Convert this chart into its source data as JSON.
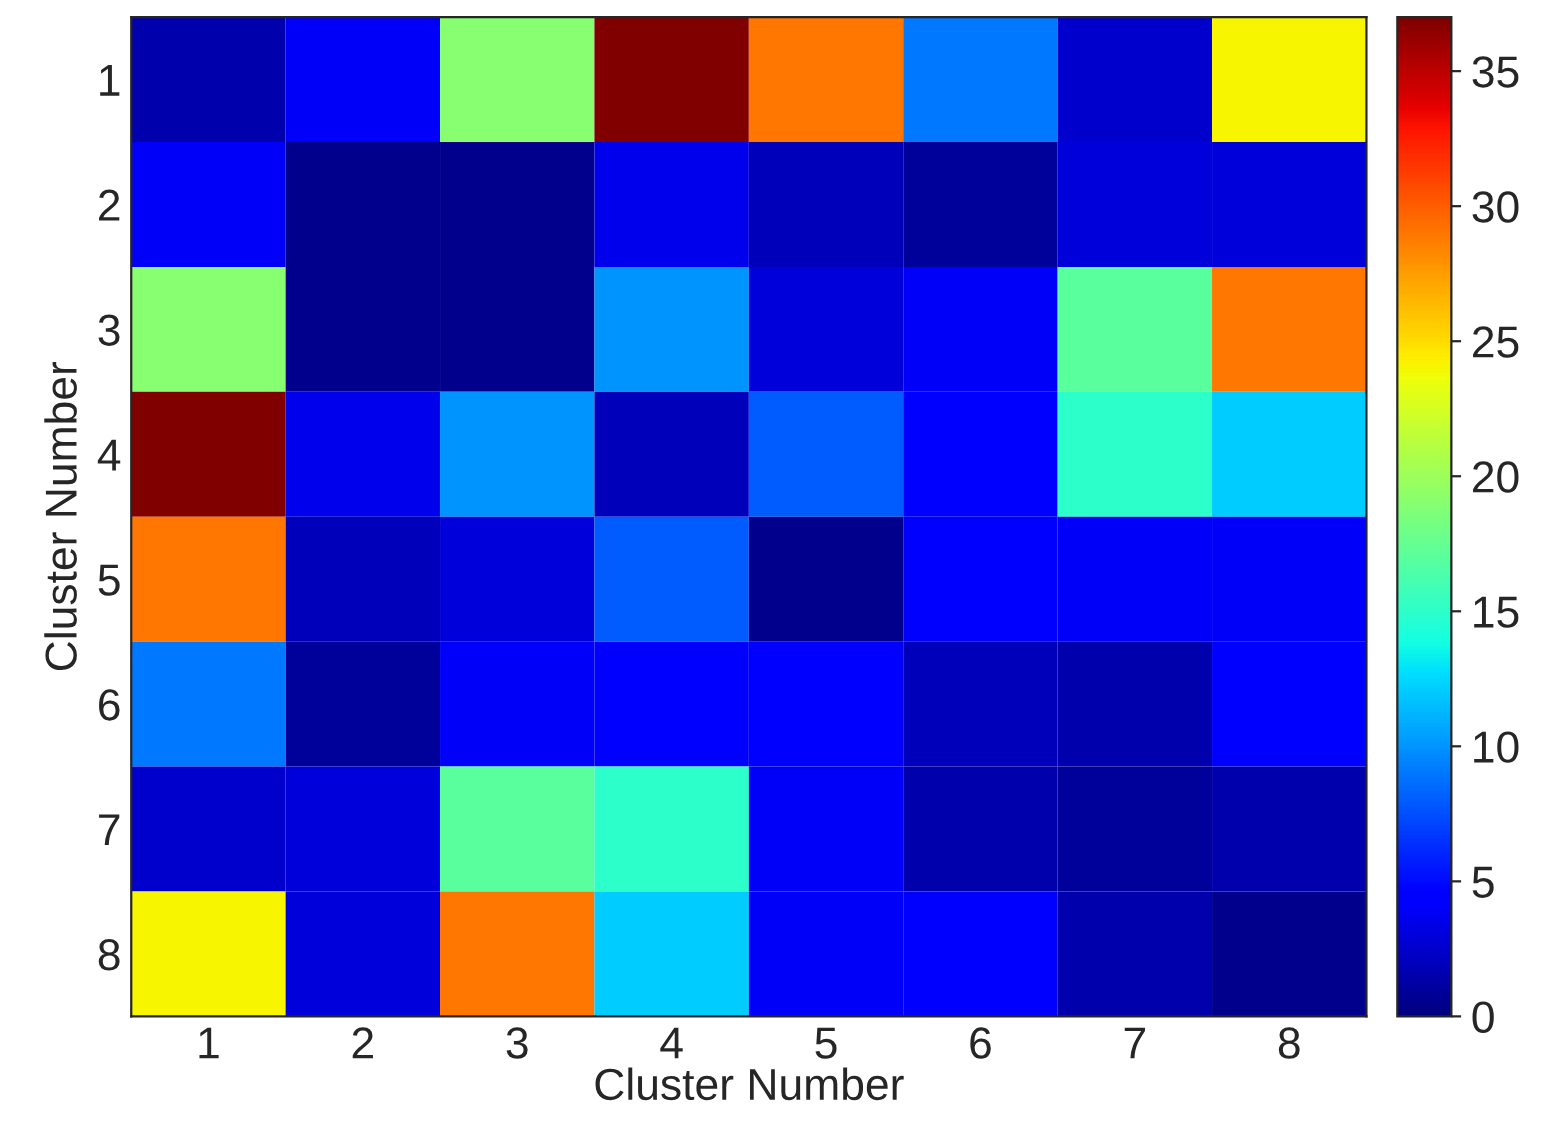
{
  "chart_data": {
    "type": "heatmap",
    "xlabel": "Cluster Number",
    "ylabel": "Cluster Number",
    "categories": [
      "1",
      "2",
      "3",
      "4",
      "5",
      "6",
      "7",
      "8"
    ],
    "y_categories": [
      "1",
      "2",
      "3",
      "4",
      "5",
      "6",
      "7",
      "8"
    ],
    "cells": [
      [
        1.5,
        4,
        19,
        37,
        29,
        9,
        2.5,
        24
      ],
      [
        4,
        0.5,
        0.5,
        3.5,
        2,
        1,
        3,
        3
      ],
      [
        19,
        0.5,
        0.5,
        10,
        3,
        4,
        17,
        29
      ],
      [
        37,
        3.5,
        10,
        2,
        8,
        4.5,
        15,
        12
      ],
      [
        29,
        2,
        3,
        8,
        0.5,
        4.5,
        4,
        4
      ],
      [
        9,
        1,
        4,
        4.5,
        4.5,
        2,
        1.5,
        4.5
      ],
      [
        2.5,
        3,
        17,
        15,
        4,
        1.5,
        1,
        1.5
      ],
      [
        24,
        3,
        29,
        12,
        4,
        4.5,
        1.5,
        0.5
      ]
    ],
    "clim": [
      0,
      37
    ],
    "cticks": [
      0,
      5,
      10,
      15,
      20,
      25,
      30,
      35
    ]
  }
}
